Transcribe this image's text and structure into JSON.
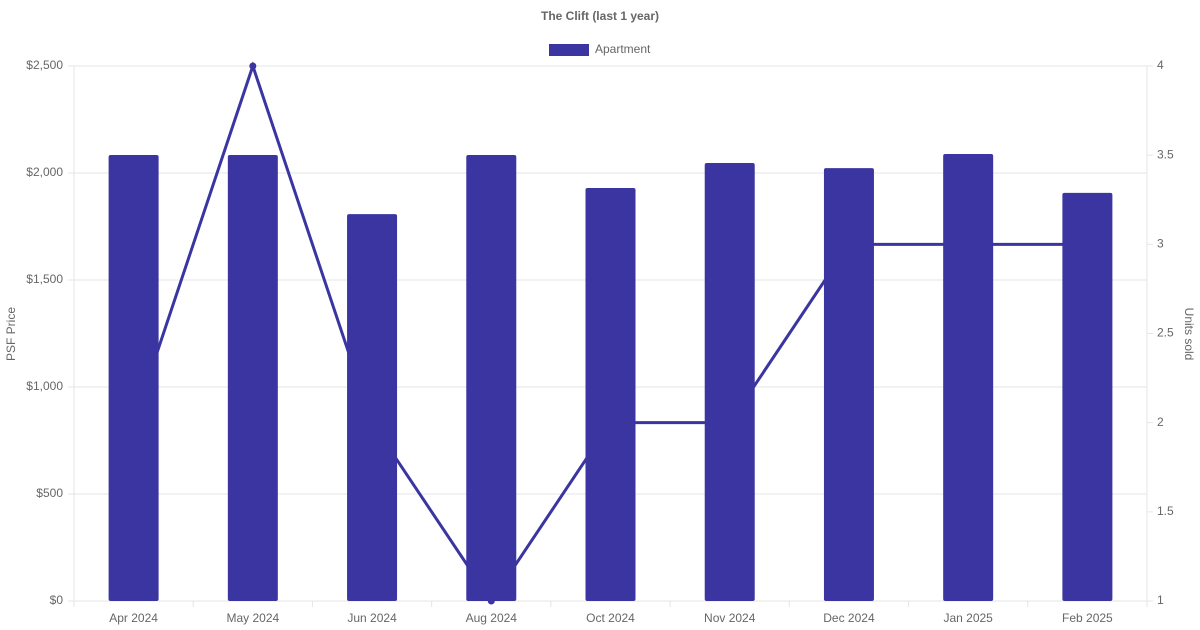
{
  "chart_data": {
    "type": "bar",
    "title": "The Clift (last 1 year)",
    "categories": [
      "Apr 2024",
      "May 2024",
      "Jun 2024",
      "Aug 2024",
      "Oct 2024",
      "Nov 2024",
      "Dec 2024",
      "Jan 2025",
      "Feb 2025"
    ],
    "series": [
      {
        "name": "Apartment",
        "type": "bar",
        "color": "#3b35a1",
        "values": [
          2084,
          2084,
          1808,
          2084,
          1930,
          2047,
          2023,
          2089,
          1907
        ]
      },
      {
        "type": "line",
        "axis": "y2",
        "color": "#3b35a1",
        "values": [
          2,
          4,
          2,
          1,
          2,
          2,
          3,
          3,
          3
        ]
      }
    ],
    "y_label": "PSF Price",
    "y2_label": "Units sold",
    "ylim": [
      0,
      2500
    ],
    "yticks": [
      {
        "value": 0,
        "label": "$0"
      },
      {
        "value": 500,
        "label": "$500"
      },
      {
        "value": 1000,
        "label": "$1,000"
      },
      {
        "value": 1500,
        "label": "$1,500"
      },
      {
        "value": 2000,
        "label": "$2,000"
      },
      {
        "value": 2500,
        "label": "$2,500"
      }
    ],
    "y2lim": [
      1,
      4
    ],
    "y2ticks": [
      1,
      1.5,
      2,
      2.5,
      3,
      3.5,
      4
    ],
    "grid": true,
    "legend": "top"
  }
}
